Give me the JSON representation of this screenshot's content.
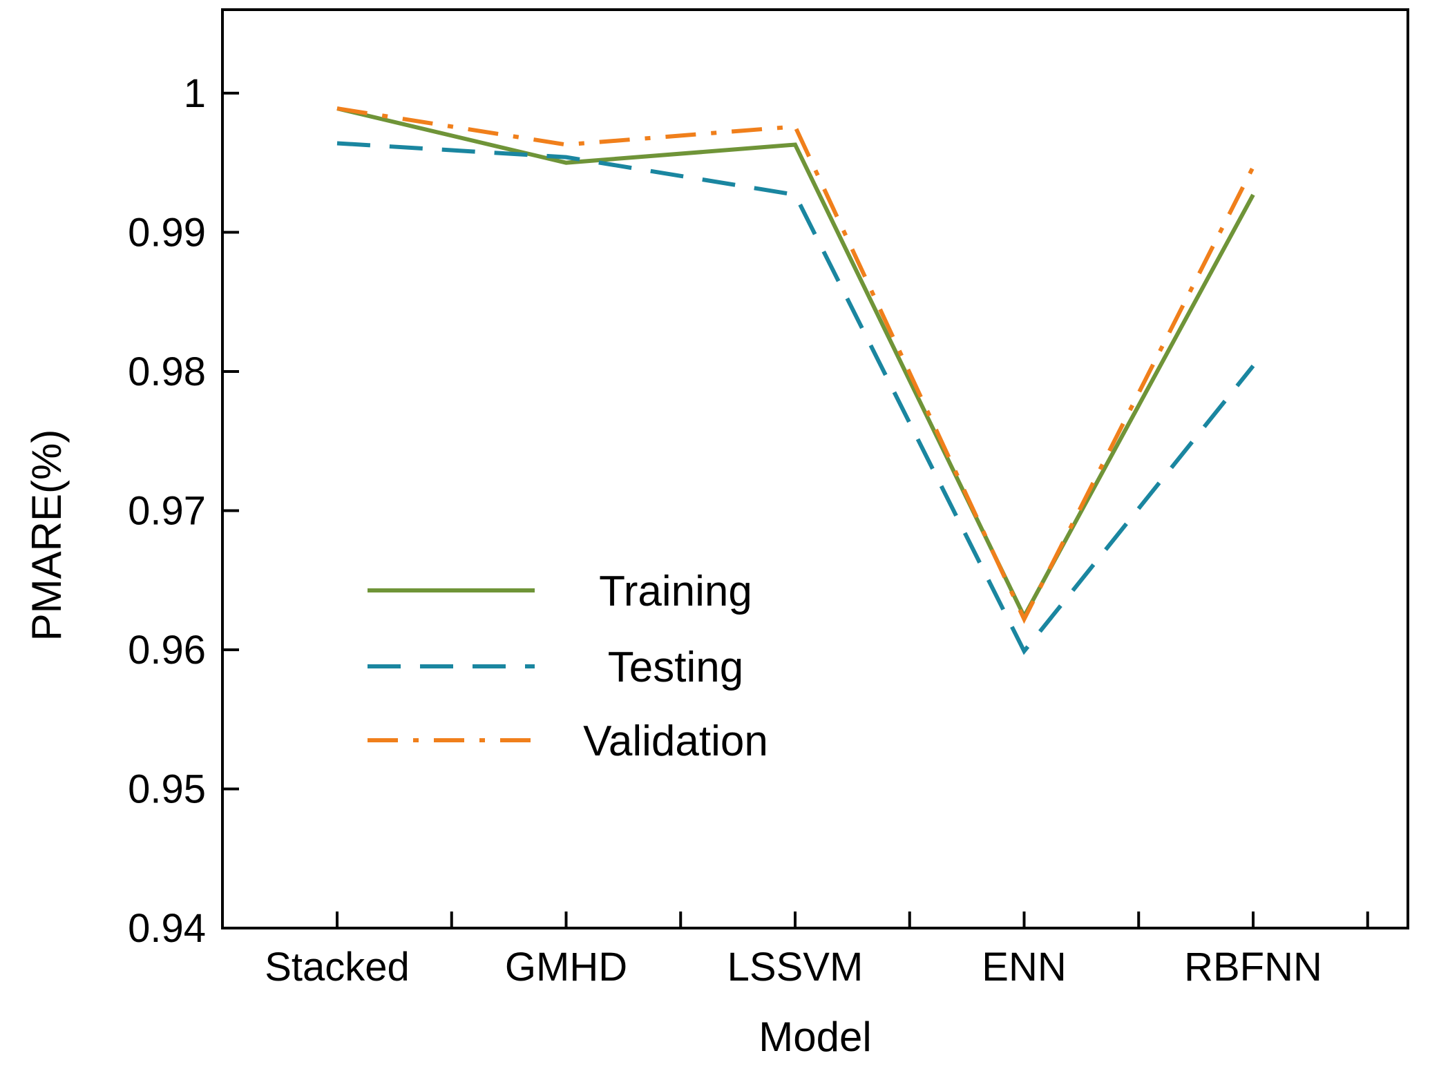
{
  "chart_data": {
    "type": "line",
    "title": "",
    "xlabel": "Model",
    "ylabel": "PMARE(%)",
    "categories": [
      "Stacked",
      "GMHD",
      "LSSVM",
      "ENN",
      "RBFNN"
    ],
    "ylim": [
      0.94,
      1.006
    ],
    "yticks": [
      0.94,
      0.95,
      0.96,
      0.97,
      0.98,
      0.99,
      1
    ],
    "ytick_labels": [
      "0.94",
      "0.95",
      "0.96",
      "0.97",
      "0.98",
      "0.99",
      "1"
    ],
    "legend_position": "center-left",
    "series": [
      {
        "name": "Training",
        "color": "#6f9438",
        "dash": "solid",
        "values": [
          0.9989,
          0.995,
          0.9963,
          0.9624,
          0.9927
        ]
      },
      {
        "name": "Testing",
        "color": "#1a86a0",
        "dash": "dashed",
        "values": [
          0.9964,
          0.9954,
          0.9927,
          0.9599,
          0.9804
        ]
      },
      {
        "name": "Validation",
        "color": "#f07f1b",
        "dash": "dashdot",
        "values": [
          0.9989,
          0.9963,
          0.9976,
          0.9622,
          0.9947
        ]
      }
    ]
  }
}
